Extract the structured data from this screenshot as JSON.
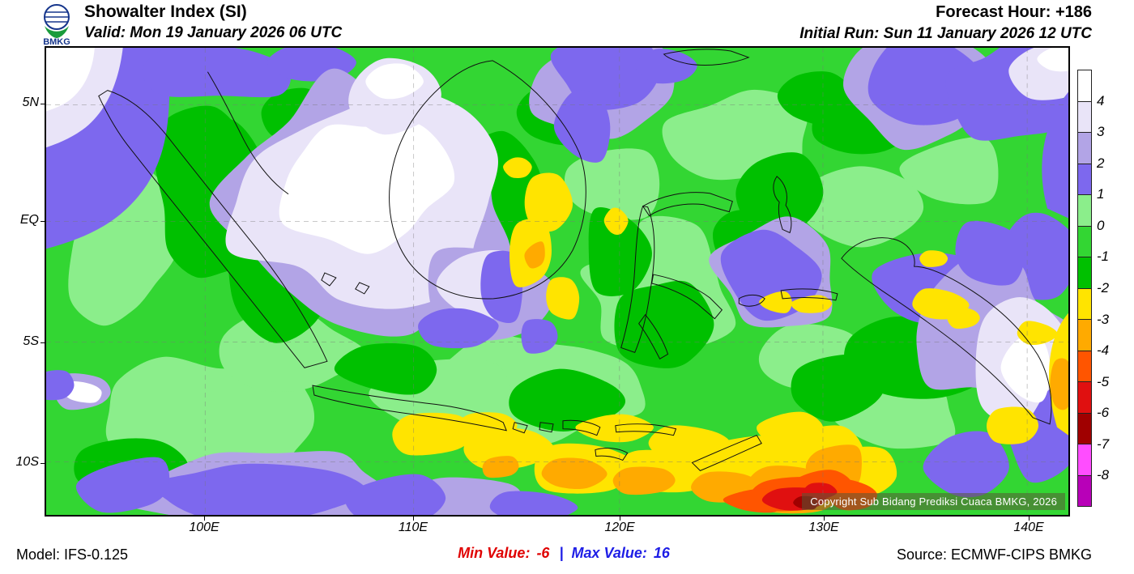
{
  "header": {
    "logo_text": "BMKG",
    "title": "Showalter Index (SI)",
    "valid_line": "Valid: Mon 19 January 2026 06 UTC",
    "forecast_hour": "Forecast Hour: +186",
    "initial_run": "Initial Run: Sun 11 January 2026 12 UTC"
  },
  "map": {
    "lat_labels": [
      "5N",
      "EQ",
      "5S",
      "10S"
    ],
    "lon_labels": [
      "100E",
      "110E",
      "120E",
      "130E",
      "140E"
    ],
    "copyright": "Copyright Sub Bidang Prediksi Cuaca BMKG, 2026"
  },
  "legend": {
    "labels": [
      "4",
      "3",
      "2",
      "1",
      "0",
      "-1",
      "-2",
      "-3",
      "-4",
      "-5",
      "-6",
      "-7",
      "-8"
    ],
    "colors": [
      "#ffffff",
      "#e9e4f8",
      "#b2a4e6",
      "#7d68ee",
      "#8bee8b",
      "#33d633",
      "#00c000",
      "#ffe400",
      "#ffaa00",
      "#ff5500",
      "#e01010",
      "#a00000",
      "#ff4dff",
      "#b800b8"
    ]
  },
  "footer": {
    "model": "Model: IFS-0.125",
    "min_label": "Min Value:",
    "min_value": "-6",
    "separator": "|",
    "max_label": "Max Value:",
    "max_value": "16",
    "source": "Source: ECMWF-CIPS BMKG"
  },
  "colors": {
    "min_text": "#e00000",
    "max_text": "#1e1ee6",
    "map_base_green": "#33d633"
  }
}
